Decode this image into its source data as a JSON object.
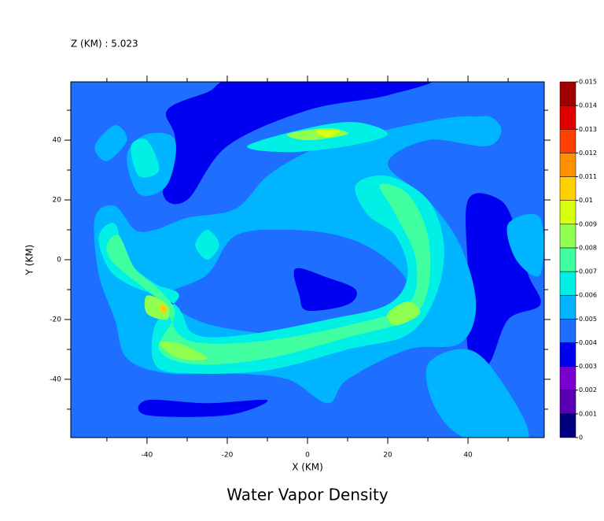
{
  "chart_data": {
    "type": "contour",
    "title": "Water Vapor Density",
    "subtitle": "Z (KM) : 5.023",
    "x_label": "X (KM)",
    "y_label": "Y (KM)",
    "xlim": [
      -59,
      59
    ],
    "ylim": [
      -59.5,
      59.5
    ],
    "xticks": [
      -40,
      -20,
      0,
      20,
      40
    ],
    "yticks": [
      -40,
      -20,
      0,
      20,
      40
    ],
    "xminor": [
      -50,
      -30,
      -10,
      10,
      30,
      50
    ],
    "yminor": [
      -50,
      -30,
      -10,
      10,
      30,
      50
    ],
    "levels": [
      0,
      0.001,
      0.002,
      0.003,
      0.004,
      0.005,
      0.006,
      0.007,
      0.008,
      0.009,
      0.01,
      0.011,
      0.012,
      0.013,
      0.014,
      0.015
    ],
    "colors": [
      "#000080",
      "#5a00b4",
      "#7a00d0",
      "#0000f0",
      "#1e6eff",
      "#00b4ff",
      "#00f0e6",
      "#40ffa0",
      "#90ff50",
      "#d8ff10",
      "#ffd000",
      "#ff9000",
      "#ff4000",
      "#e00000",
      "#a00000"
    ],
    "background_level": 0.004,
    "regions": [
      {
        "level": 0.003,
        "x": [
          -35,
          -25,
          -15,
          30,
          20,
          0,
          -20,
          -30,
          -36,
          -33
        ],
        "y": [
          50,
          56,
          61,
          61,
          55,
          50,
          38,
          20,
          22,
          40
        ]
      },
      {
        "level": 0.003,
        "x": [
          40,
          48,
          52,
          55,
          58,
          50,
          45,
          40,
          40
        ],
        "y": [
          20,
          20,
          10,
          -5,
          -15,
          -20,
          -35,
          -30,
          -5
        ]
      },
      {
        "level": 0.003,
        "x": [
          -40,
          -25,
          -10,
          -20,
          -40
        ],
        "y": [
          -47,
          -48,
          -47,
          -52,
          -52
        ]
      },
      {
        "level": 0.003,
        "x": [
          -5,
          5,
          5,
          -5
        ],
        "y": [
          30,
          32,
          27,
          27
        ]
      },
      {
        "level": 0.005,
        "x": [
          -53,
          -48,
          -43,
          -38,
          -30,
          -18,
          -10,
          0,
          10,
          25,
          40,
          48,
          45,
          30,
          20,
          30,
          38,
          42,
          38,
          25,
          10,
          5,
          -5,
          -20,
          -35,
          -45,
          -48,
          -52
        ],
        "y": [
          14,
          18,
          10,
          10,
          14,
          17,
          28,
          36,
          40,
          45,
          48,
          45,
          38,
          40,
          32,
          20,
          5,
          -15,
          -28,
          -30,
          -40,
          -48,
          -40,
          -38,
          -38,
          -33,
          -20,
          -5
        ]
      },
      {
        "level": 0.005,
        "x": [
          -53,
          -48,
          -45,
          -50
        ],
        "y": [
          38,
          45,
          40,
          33
        ]
      },
      {
        "level": 0.005,
        "x": [
          -45,
          -40,
          -33,
          -35,
          -42
        ],
        "y": [
          35,
          42,
          40,
          25,
          22
        ]
      },
      {
        "level": 0.005,
        "x": [
          50,
          58,
          58,
          52
        ],
        "y": [
          12,
          14,
          -5,
          0
        ]
      },
      {
        "level": 0.005,
        "x": [
          35,
          45,
          48,
          38
        ],
        "y": [
          45,
          48,
          42,
          40
        ]
      },
      {
        "level": 0.005,
        "x": [
          30,
          40,
          48,
          55,
          40,
          32
        ],
        "y": [
          -35,
          -30,
          -40,
          -60,
          -60,
          -50
        ]
      },
      {
        "level": 0.004,
        "x": [
          -35,
          -25,
          -18,
          -5,
          8,
          18,
          25,
          22,
          10,
          0,
          -15,
          -28
        ],
        "y": [
          -12,
          -5,
          8,
          10,
          8,
          2,
          -8,
          -18,
          -20,
          -25,
          -24,
          -20
        ]
      },
      {
        "level": 0.003,
        "x": [
          -3,
          5,
          12,
          10,
          0,
          -2
        ],
        "y": [
          -3,
          -6,
          -10,
          -15,
          -17,
          -12
        ]
      },
      {
        "level": 0.006,
        "x": [
          -52,
          -48,
          -45,
          -38,
          -32,
          -38,
          -38,
          -30,
          -10,
          10,
          25,
          32,
          34,
          30,
          20,
          12,
          15,
          22,
          25,
          20,
          5,
          -15,
          -28,
          -33,
          -45,
          -50
        ],
        "y": [
          8,
          12,
          0,
          -8,
          -12,
          -22,
          -35,
          -38,
          -37,
          -30,
          -25,
          -12,
          5,
          20,
          28,
          25,
          15,
          8,
          -5,
          -15,
          -20,
          -25,
          -25,
          -15,
          -8,
          -2
        ]
      },
      {
        "level": 0.006,
        "x": [
          -15,
          0,
          12,
          20,
          10,
          -5
        ],
        "y": [
          38,
          44,
          46,
          42,
          38,
          36
        ]
      },
      {
        "level": 0.006,
        "x": [
          -28,
          -25,
          -22,
          -25
        ],
        "y": [
          5,
          10,
          5,
          0
        ]
      },
      {
        "level": 0.006,
        "x": [
          -44,
          -40,
          -37,
          -42
        ],
        "y": [
          38,
          40,
          30,
          28
        ]
      },
      {
        "level": 0.007,
        "x": [
          -50,
          -47,
          -43,
          -37,
          -33,
          -37,
          -28,
          -10,
          10,
          25,
          30,
          30,
          25,
          18,
          22,
          27,
          25,
          10,
          -10,
          -25,
          -32,
          -36,
          -45,
          -49
        ],
        "y": [
          5,
          8,
          -3,
          -10,
          -18,
          -30,
          -35,
          -33,
          -26,
          -20,
          -10,
          8,
          22,
          25,
          15,
          0,
          -15,
          -22,
          -27,
          -28,
          -25,
          -15,
          -5,
          0
        ]
      },
      {
        "level": 0.008,
        "x": [
          -40,
          -35,
          -35,
          -40
        ],
        "y": [
          -12,
          -15,
          -20,
          -18
        ]
      },
      {
        "level": 0.008,
        "x": [
          -37,
          -32,
          -25,
          -32
        ],
        "y": [
          -28,
          -33,
          -33,
          -28
        ]
      },
      {
        "level": 0.008,
        "x": [
          20,
          25,
          28,
          22
        ],
        "y": [
          -18,
          -14,
          -18,
          -22
        ]
      },
      {
        "level": 0.008,
        "x": [
          -5,
          5,
          10,
          0
        ],
        "y": [
          42,
          44,
          42,
          40
        ]
      },
      {
        "level": 0.009,
        "x": [
          2,
          8,
          5
        ],
        "y": [
          43,
          43,
          41
        ]
      },
      {
        "level": 0.01,
        "x": [
          -37,
          -35,
          -36
        ],
        "y": [
          -15,
          -16,
          -18
        ]
      }
    ]
  }
}
